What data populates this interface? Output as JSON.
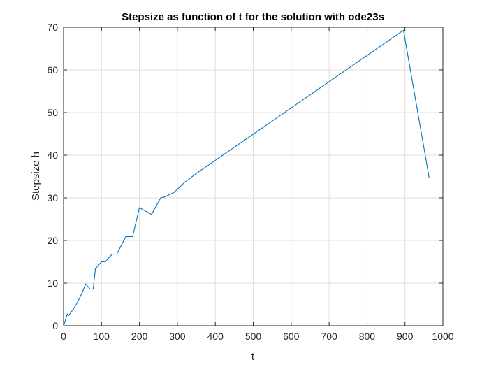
{
  "chart_data": {
    "type": "line",
    "title": "Stepsize as function of t for the solution with ode23s",
    "xlabel": "t",
    "ylabel": "Stepsize h",
    "xlim": [
      0,
      1000
    ],
    "ylim": [
      0,
      70
    ],
    "xticks": [
      0,
      100,
      200,
      300,
      400,
      500,
      600,
      700,
      800,
      900,
      1000
    ],
    "yticks": [
      0,
      10,
      20,
      30,
      40,
      50,
      60,
      70
    ],
    "grid": true,
    "legend": "none",
    "colors": {
      "line": "#0072BD",
      "grid": "#dfdfdf",
      "axes": "#262626"
    },
    "series": [
      {
        "x": [
          0,
          2,
          10,
          14,
          20,
          28,
          36,
          44,
          52,
          58,
          64,
          70,
          78,
          84,
          92,
          100,
          110,
          118,
          128,
          140,
          152,
          164,
          172,
          182,
          200,
          210,
          232,
          256,
          266,
          290,
          320,
          350,
          896,
          964
        ],
        "y": [
          0,
          0.5,
          2.8,
          2.4,
          3.2,
          4.2,
          5.4,
          6.8,
          8.4,
          9.8,
          9.2,
          8.6,
          8.6,
          13.4,
          14.2,
          15.0,
          15.0,
          15.8,
          16.8,
          16.8,
          18.8,
          20.9,
          20.9,
          20.9,
          27.7,
          27.2,
          26.1,
          30.0,
          30.2,
          31.2,
          33.7,
          35.7,
          69.3,
          34.6
        ]
      }
    ]
  }
}
